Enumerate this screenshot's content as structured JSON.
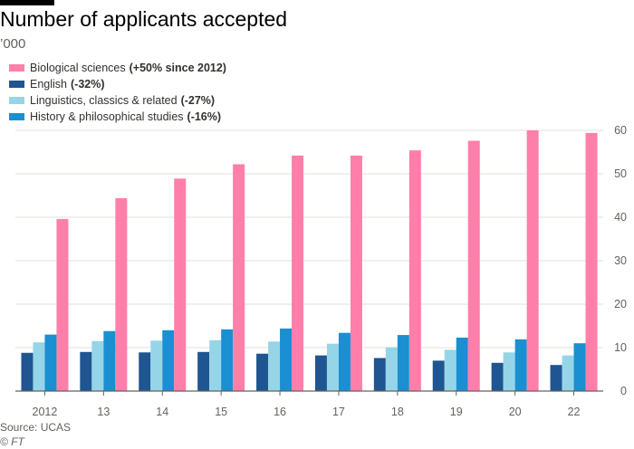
{
  "header": {
    "title": "Number of applicants accepted",
    "unit": "’000"
  },
  "legend": [
    {
      "label": "Biological sciences",
      "change": "(+50% since 2012)",
      "color": "#ff7faa"
    },
    {
      "label": "English",
      "change": "(-32%)",
      "color": "#1f5590"
    },
    {
      "label": "Linguistics, classics & related",
      "change": "(-27%)",
      "color": "#96d5e8"
    },
    {
      "label": "History & philosophical studies",
      "change": "(-16%)",
      "color": "#1a8fd1"
    }
  ],
  "chart_data": {
    "type": "bar",
    "title": "Number of applicants accepted",
    "ylabel": "’000",
    "xlabel": "",
    "categories": [
      "2012",
      "13",
      "14",
      "15",
      "16",
      "17",
      "18",
      "19",
      "20",
      "22"
    ],
    "ylim": [
      0,
      60
    ],
    "yticks": [
      0,
      10,
      20,
      30,
      40,
      50,
      60
    ],
    "grid": true,
    "legend_position": "top-left",
    "series": [
      {
        "name": "English",
        "color": "#1f5590",
        "values": [
          8.8,
          9.0,
          8.9,
          9.0,
          8.6,
          8.2,
          7.6,
          7.0,
          6.5,
          6.0
        ]
      },
      {
        "name": "Linguistics, classics & related",
        "color": "#96d5e8",
        "values": [
          11.2,
          11.5,
          11.6,
          11.7,
          11.4,
          10.9,
          10.1,
          9.5,
          8.9,
          8.2
        ]
      },
      {
        "name": "History & philosophical studies",
        "color": "#1a8fd1",
        "values": [
          13.0,
          13.8,
          14.0,
          14.2,
          14.4,
          13.4,
          12.9,
          12.3,
          11.9,
          11.0
        ]
      },
      {
        "name": "Biological sciences",
        "color": "#ff7faa",
        "values": [
          39.6,
          44.4,
          48.9,
          52.2,
          54.2,
          54.2,
          55.4,
          57.6,
          60.0,
          59.4
        ]
      }
    ]
  },
  "footer": {
    "source": "Source: UCAS",
    "credit": "© FT"
  }
}
